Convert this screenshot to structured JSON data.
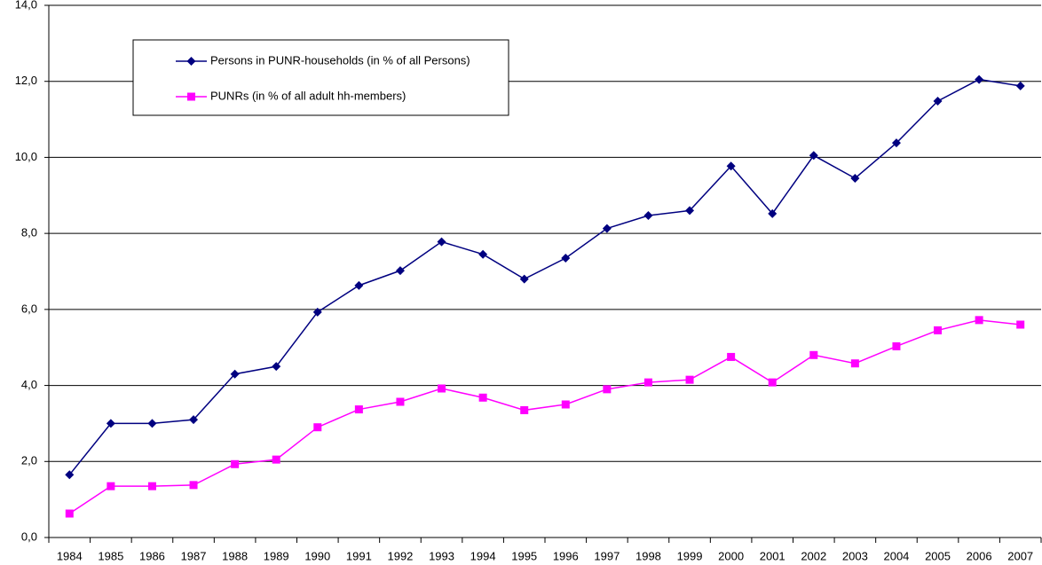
{
  "chart_data": {
    "type": "line",
    "categories": [
      "1984",
      "1985",
      "1986",
      "1987",
      "1988",
      "1989",
      "1990",
      "1991",
      "1992",
      "1993",
      "1994",
      "1995",
      "1996",
      "1997",
      "1998",
      "1999",
      "2000",
      "2001",
      "2002",
      "2003",
      "2004",
      "2005",
      "2006",
      "2007"
    ],
    "series": [
      {
        "name": "Persons in PUNR-households (in % of all Persons)",
        "color": "#000080",
        "marker": "diamond",
        "values": [
          1.65,
          3.0,
          3.0,
          3.1,
          4.3,
          4.5,
          5.93,
          6.63,
          7.02,
          7.78,
          7.45,
          6.8,
          7.35,
          8.13,
          8.47,
          8.6,
          9.77,
          8.52,
          10.05,
          9.45,
          10.38,
          11.48,
          12.05,
          11.88
        ]
      },
      {
        "name": "PUNRs (in % of all adult hh-members)",
        "color": "#ff00ff",
        "marker": "square",
        "values": [
          0.63,
          1.35,
          1.35,
          1.38,
          1.93,
          2.05,
          2.9,
          3.37,
          3.57,
          3.92,
          3.68,
          3.35,
          3.5,
          3.9,
          4.08,
          4.15,
          4.75,
          4.08,
          4.8,
          4.58,
          5.03,
          5.45,
          5.72,
          5.6
        ]
      }
    ],
    "ylim": [
      0,
      14
    ],
    "yticks": [
      {
        "value": 0,
        "label": "0,0"
      },
      {
        "value": 2,
        "label": "2,0"
      },
      {
        "value": 4,
        "label": "4,0"
      },
      {
        "value": 6,
        "label": "6,0"
      },
      {
        "value": 8,
        "label": "8,0"
      },
      {
        "value": 10,
        "label": "10,0"
      },
      {
        "value": 12,
        "label": "12,0"
      },
      {
        "value": 14,
        "label": "14,0"
      }
    ],
    "grid": true
  }
}
